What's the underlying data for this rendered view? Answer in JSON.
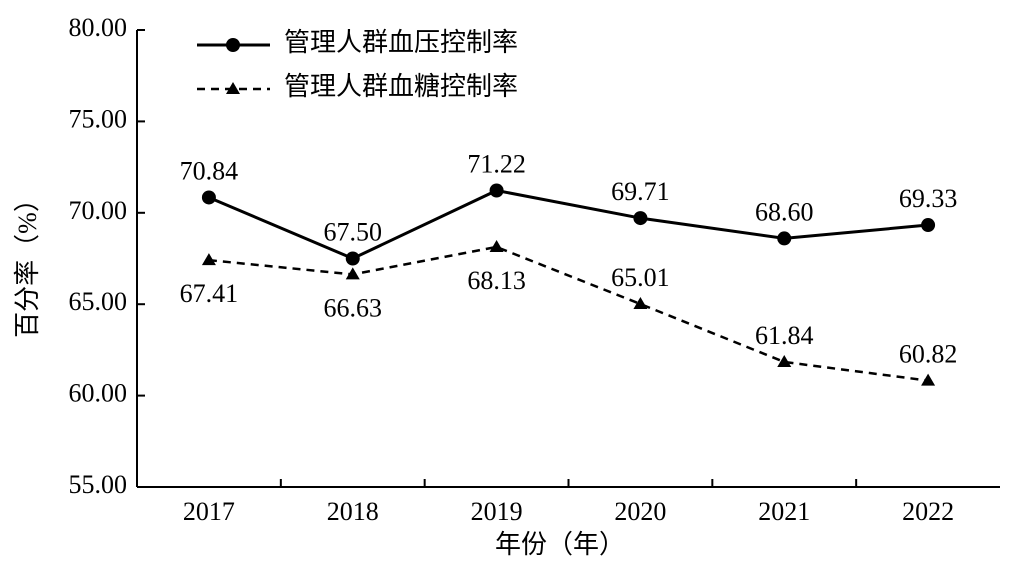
{
  "chart_data": {
    "type": "line",
    "x_label": "年份（年）",
    "y_label": "百分率（%）",
    "categories": [
      "2017",
      "2018",
      "2019",
      "2020",
      "2021",
      "2022"
    ],
    "series": [
      {
        "name": "管理人群血压控制率",
        "color": "#000000",
        "marker": "circle",
        "dash": "solid",
        "values": [
          70.84,
          67.5,
          71.22,
          69.71,
          68.6,
          69.33
        ],
        "value_labels": [
          "70.84",
          "67.50",
          "71.22",
          "69.71",
          "68.60",
          "69.33"
        ]
      },
      {
        "name": "管理人群血糖控制率",
        "color": "#000000",
        "marker": "triangle",
        "dash": "dashed",
        "values": [
          67.41,
          66.63,
          68.13,
          65.01,
          61.84,
          60.82
        ],
        "value_labels": [
          "67.41",
          "66.63",
          "68.13",
          "65.01",
          "61.84",
          "60.82"
        ]
      }
    ],
    "ylim": [
      55,
      80
    ],
    "yticks": [
      {
        "value": 55,
        "label": "55.00"
      },
      {
        "value": 60,
        "label": "60.00"
      },
      {
        "value": 65,
        "label": "65.00"
      },
      {
        "value": 70,
        "label": "70.00"
      },
      {
        "value": 75,
        "label": "75.00"
      },
      {
        "value": 80,
        "label": "80.00"
      }
    ],
    "grid": false,
    "legend": "top-left"
  }
}
